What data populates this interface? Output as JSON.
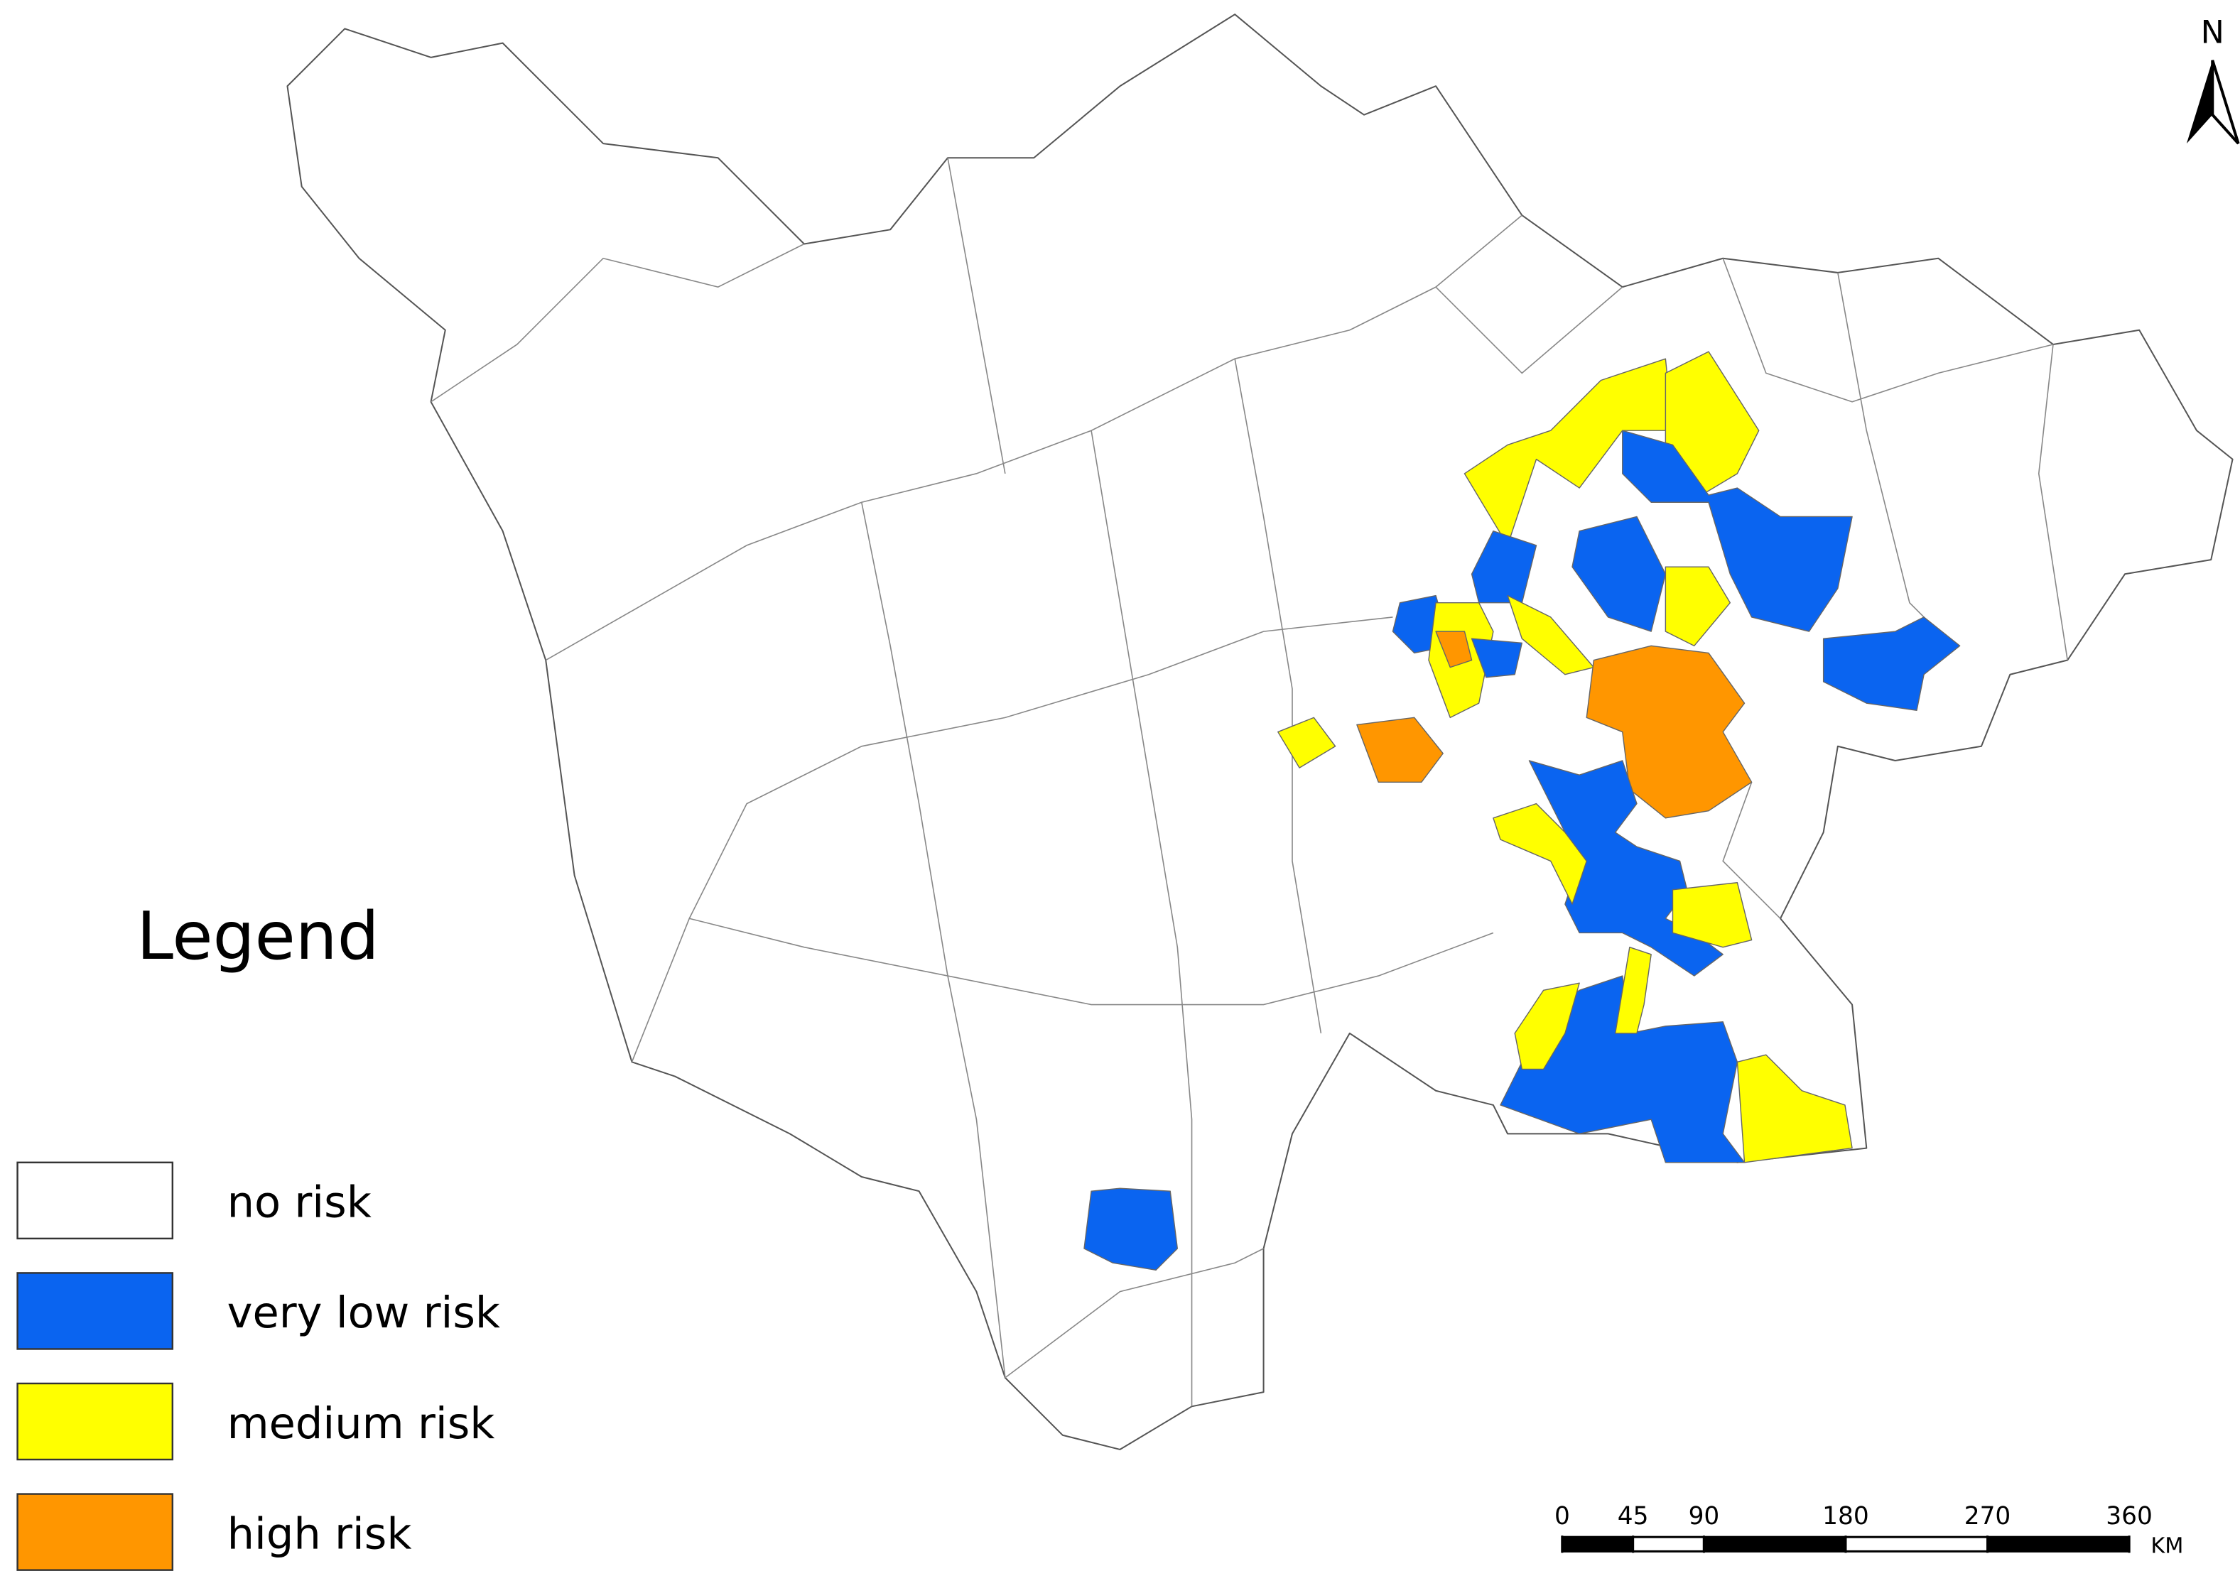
{
  "legend": {
    "title": "Legend",
    "items": [
      {
        "label": "no risk",
        "color": "#ffffff"
      },
      {
        "label": "very low risk",
        "color": "#0a64f0"
      },
      {
        "label": "medium risk",
        "color": "#ffff00"
      },
      {
        "label": "high risk",
        "color": "#ff9600"
      }
    ]
  },
  "north_arrow": {
    "label": "N"
  },
  "scale_bar": {
    "ticks": [
      0,
      45,
      90,
      180,
      270,
      360
    ],
    "unit": "KM"
  }
}
